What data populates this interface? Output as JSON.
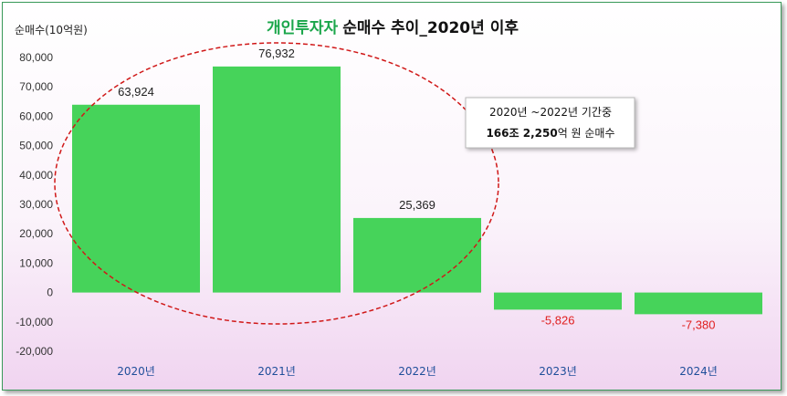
{
  "chart_data": {
    "type": "bar",
    "title_highlight": "개인투자자",
    "title_rest": "순매수 추이_2020년 이후",
    "ylabel": "순매수(10억원)",
    "categories": [
      "2020년",
      "2021년",
      "2022년",
      "2023년",
      "2024년"
    ],
    "values": [
      63924,
      76932,
      25369,
      -5826,
      -7380
    ],
    "value_labels": [
      "63,924",
      "76,932",
      "25,369",
      "-5,826",
      "-7,380"
    ],
    "ylim": [
      -20000,
      80000
    ],
    "yticks": [
      80000,
      70000,
      60000,
      50000,
      40000,
      30000,
      20000,
      10000,
      0,
      -10000,
      -20000
    ],
    "ytick_labels": [
      "80,000",
      "70,000",
      "60,000",
      "50,000",
      "40,000",
      "30,000",
      "20,000",
      "10,000",
      "0",
      "-10,000",
      "-20,000"
    ],
    "grid": false,
    "annotation": {
      "line1": "2020년 ~2022년 기간중",
      "line2_bold": "166조 2,250",
      "line2_rest": "억 원 순매수"
    },
    "colors": {
      "bar": "#46d35a",
      "title_highlight": "#1aa64a",
      "positive_label": "#222222",
      "negative_label": "#e02020",
      "tick_x": "#1f4e9a",
      "ellipse": "#d01818"
    }
  }
}
